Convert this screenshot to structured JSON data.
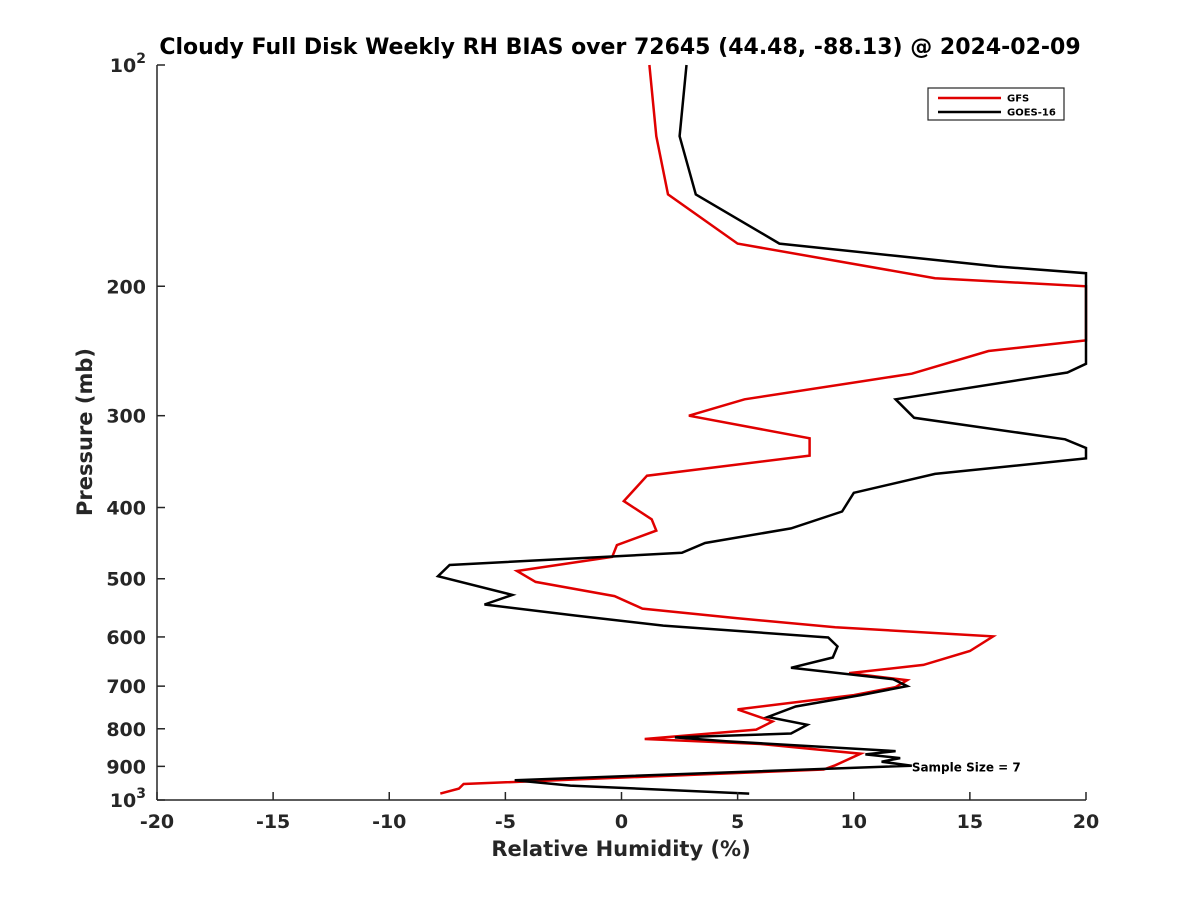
{
  "chart_data": {
    "type": "line",
    "title": "Cloudy Full Disk Weekly RH BIAS over 72645 (44.48, -88.13) @ 2024-02-09",
    "xlabel": "Relative Humidity (%)",
    "ylabel": "Pressure (mb)",
    "xlim": [
      -20,
      20
    ],
    "ylim": [
      100,
      1000
    ],
    "y_scale": "log",
    "y_reversed": true,
    "grid": false,
    "legend_position": "top-right",
    "x_ticks": [
      -20,
      -15,
      -10,
      -5,
      0,
      5,
      10,
      15,
      20
    ],
    "x_tick_labels": [
      "-20",
      "-15",
      "-10",
      "-5",
      "0",
      "5",
      "10",
      "15",
      "20"
    ],
    "y_ticks": [
      100,
      200,
      300,
      400,
      500,
      600,
      700,
      800,
      900,
      1000
    ],
    "y_tick_labels": [
      {
        "base": "10",
        "exp": "2"
      },
      {
        "base": "200",
        "exp": ""
      },
      {
        "base": "300",
        "exp": ""
      },
      {
        "base": "400",
        "exp": ""
      },
      {
        "base": "500",
        "exp": ""
      },
      {
        "base": "600",
        "exp": ""
      },
      {
        "base": "700",
        "exp": ""
      },
      {
        "base": "800",
        "exp": ""
      },
      {
        "base": "900",
        "exp": ""
      },
      {
        "base": "10",
        "exp": "3"
      }
    ],
    "series": [
      {
        "name": "GFS",
        "color": "#e00000",
        "points": [
          [
            1.2,
            100
          ],
          [
            1.5,
            125
          ],
          [
            2.0,
            150
          ],
          [
            5.0,
            175
          ],
          [
            13.5,
            195
          ],
          [
            20.0,
            200
          ],
          [
            20.0,
            237
          ],
          [
            15.8,
            245
          ],
          [
            12.5,
            263
          ],
          [
            5.3,
            285
          ],
          [
            2.9,
            300
          ],
          [
            8.1,
            322
          ],
          [
            8.1,
            340
          ],
          [
            1.1,
            362
          ],
          [
            0.1,
            392
          ],
          [
            1.3,
            415
          ],
          [
            1.5,
            430
          ],
          [
            -0.2,
            450
          ],
          [
            -0.4,
            467
          ],
          [
            -4.5,
            488
          ],
          [
            -3.7,
            505
          ],
          [
            -0.3,
            528
          ],
          [
            0.9,
            549
          ],
          [
            5.0,
            566
          ],
          [
            9.2,
            582
          ],
          [
            16.0,
            599
          ],
          [
            15.0,
            627
          ],
          [
            13.0,
            655
          ],
          [
            9.8,
            672
          ],
          [
            12.3,
            687
          ],
          [
            11.8,
            702
          ],
          [
            10.0,
            720
          ],
          [
            5.0,
            753
          ],
          [
            6.5,
            782
          ],
          [
            5.8,
            802
          ],
          [
            1.0,
            826
          ],
          [
            6.0,
            839
          ],
          [
            10.3,
            865
          ],
          [
            9.2,
            897
          ],
          [
            8.7,
            909
          ],
          [
            -6.8,
            951
          ],
          [
            -7.0,
            965
          ],
          [
            -7.8,
            980
          ]
        ]
      },
      {
        "name": "GOES-16",
        "color": "#000000",
        "points": [
          [
            2.8,
            100
          ],
          [
            2.5,
            125
          ],
          [
            3.2,
            150
          ],
          [
            6.8,
            175
          ],
          [
            16.2,
            188
          ],
          [
            20.0,
            192
          ],
          [
            20.0,
            255
          ],
          [
            19.2,
            262
          ],
          [
            11.8,
            285
          ],
          [
            12.6,
            302
          ],
          [
            19.1,
            323
          ],
          [
            20.0,
            332
          ],
          [
            20.0,
            343
          ],
          [
            13.5,
            360
          ],
          [
            10.0,
            382
          ],
          [
            9.5,
            405
          ],
          [
            7.3,
            427
          ],
          [
            3.6,
            447
          ],
          [
            2.6,
            461
          ],
          [
            -7.4,
            479
          ],
          [
            -7.9,
            496
          ],
          [
            -4.7,
            526
          ],
          [
            -5.9,
            542
          ],
          [
            -2.0,
            561
          ],
          [
            1.8,
            579
          ],
          [
            8.9,
            601
          ],
          [
            9.3,
            618
          ],
          [
            9.1,
            640
          ],
          [
            7.3,
            661
          ],
          [
            11.7,
            685
          ],
          [
            12.3,
            700
          ],
          [
            10.3,
            720
          ],
          [
            7.5,
            746
          ],
          [
            6.3,
            771
          ],
          [
            8.0,
            790
          ],
          [
            7.3,
            812
          ],
          [
            2.3,
            822
          ],
          [
            4.5,
            832
          ],
          [
            11.8,
            858
          ],
          [
            10.5,
            867
          ],
          [
            12.0,
            877
          ],
          [
            11.2,
            887
          ],
          [
            12.5,
            898
          ],
          [
            -4.6,
            940
          ],
          [
            -2.2,
            956
          ],
          [
            5.5,
            980
          ]
        ]
      }
    ],
    "annotations": [
      {
        "text": "Sample Size = 7",
        "x": 12.5,
        "y": 900
      }
    ]
  }
}
